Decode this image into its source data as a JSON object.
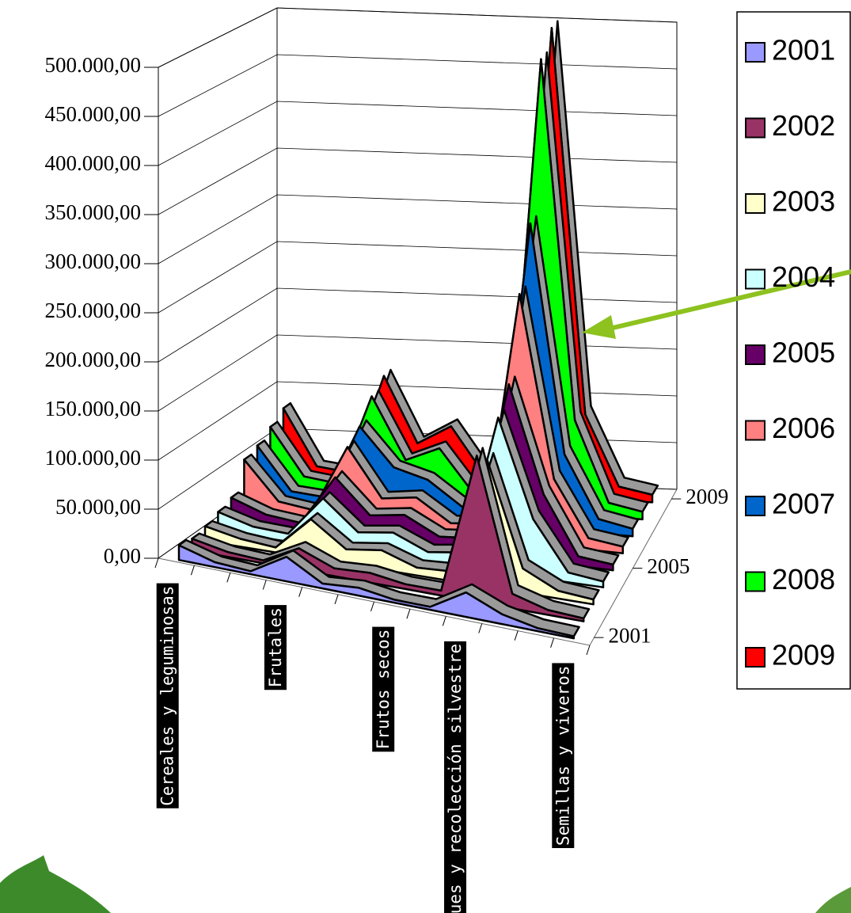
{
  "chart_data": {
    "type": "ribbon3d",
    "categories": [
      "Cereales y leguminosas",
      null,
      null,
      "Frutales",
      null,
      null,
      "Frutos secos",
      null,
      "Bosques y recolección silvestre",
      null,
      null,
      "Semillas y viveros"
    ],
    "series": [
      {
        "name": "2001",
        "color": "#9999ff",
        "values": [
          15000,
          5000,
          3000,
          25000,
          5000,
          8000,
          3000,
          3000,
          25000,
          10000,
          3000,
          2000
        ]
      },
      {
        "name": "2002",
        "color": "#993366",
        "values": [
          12000,
          5000,
          3000,
          22000,
          8000,
          10000,
          5000,
          5000,
          150000,
          15000,
          5000,
          3000
        ]
      },
      {
        "name": "2003",
        "color": "#ffffcc",
        "values": [
          15000,
          8000,
          5000,
          40000,
          15000,
          20000,
          8000,
          10000,
          130000,
          25000,
          8000,
          5000
        ]
      },
      {
        "name": "2004",
        "color": "#ccffff",
        "values": [
          20000,
          10000,
          8000,
          50000,
          20000,
          25000,
          10000,
          15000,
          160000,
          60000,
          10000,
          6000
        ]
      },
      {
        "name": "2005",
        "color": "#660066",
        "values": [
          25000,
          12000,
          8000,
          60000,
          25000,
          30000,
          12000,
          15000,
          180000,
          70000,
          10000,
          6000
        ]
      },
      {
        "name": "2006",
        "color": "#ff8080",
        "values": [
          55000,
          15000,
          10000,
          80000,
          30000,
          35000,
          12000,
          15000,
          260000,
          70000,
          12000,
          7000
        ]
      },
      {
        "name": "2007",
        "color": "#0066cc",
        "values": [
          60000,
          15000,
          12000,
          90000,
          50000,
          40000,
          15000,
          15000,
          320000,
          80000,
          15000,
          8000
        ]
      },
      {
        "name": "2008",
        "color": "#00ff00",
        "values": [
          70000,
          20000,
          15000,
          110000,
          45000,
          60000,
          15000,
          20000,
          480000,
          100000,
          15000,
          8000
        ]
      },
      {
        "name": "2009",
        "color": "#ff0000",
        "values": [
          80000,
          20000,
          15000,
          120000,
          50000,
          70000,
          20000,
          20000,
          500000,
          90000,
          15000,
          8000
        ]
      }
    ],
    "ylim": [
      0,
      500000
    ],
    "yticks": [
      {
        "value": 0,
        "label": "0,00"
      },
      {
        "value": 50000,
        "label": "50.000,00"
      },
      {
        "value": 100000,
        "label": "100.000,00"
      },
      {
        "value": 150000,
        "label": "150.000,00"
      },
      {
        "value": 200000,
        "label": "200.000,00"
      },
      {
        "value": 250000,
        "label": "250.000,00"
      },
      {
        "value": 300000,
        "label": "300.000,00"
      },
      {
        "value": 350000,
        "label": "350.000,00"
      },
      {
        "value": 400000,
        "label": "400.000,00"
      },
      {
        "value": 450000,
        "label": "450.000,00"
      },
      {
        "value": 500000,
        "label": "500.000,00"
      }
    ],
    "zticks": [
      2001,
      2005,
      2009
    ],
    "grid": true
  }
}
